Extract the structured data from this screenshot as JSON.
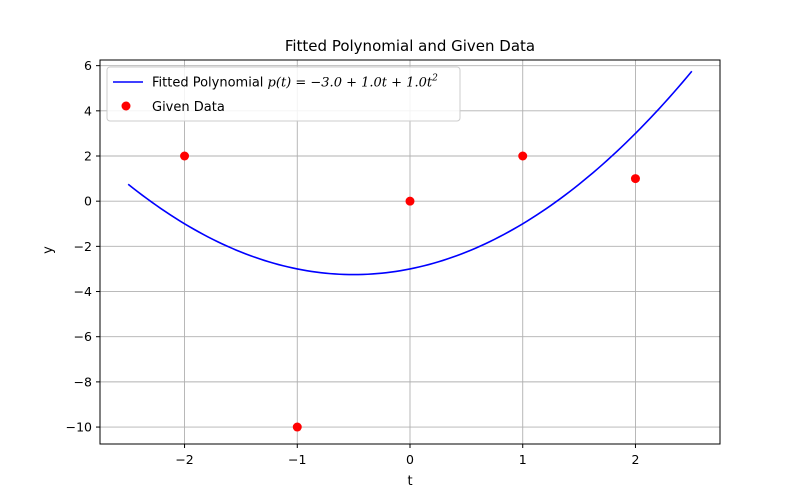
{
  "chart_data": {
    "type": "line",
    "title": "Fitted Polynomial and Given Data",
    "xlabel": "t",
    "ylabel": "y",
    "xlim": [
      -2.75,
      2.75
    ],
    "ylim": [
      -10.75,
      6.25
    ],
    "xticks": [
      -2,
      -1,
      0,
      1,
      2
    ],
    "yticks": [
      -10,
      -8,
      -6,
      -4,
      -2,
      0,
      2,
      4,
      6
    ],
    "grid": true,
    "legend_position": "top-left",
    "series": [
      {
        "name": "Fitted Polynomial p(t) = −3.0 + 1.0t + 1.0t²",
        "kind": "line",
        "color": "#0000ff",
        "coefficients": [
          -3.0,
          1.0,
          1.0
        ],
        "t_range": [
          -2.5,
          2.5
        ]
      },
      {
        "name": "Given Data",
        "kind": "scatter",
        "color": "#ff0000",
        "x": [
          -2,
          -1,
          0,
          1,
          2
        ],
        "y": [
          2,
          -10,
          0,
          2,
          1
        ]
      }
    ],
    "legend": {
      "line_prefix": "Fitted Polynomial ",
      "line_math": "p(t) = −3.0 + 1.0t + 1.0t",
      "line_math_sup": "2",
      "scatter_label": "Given Data"
    }
  }
}
